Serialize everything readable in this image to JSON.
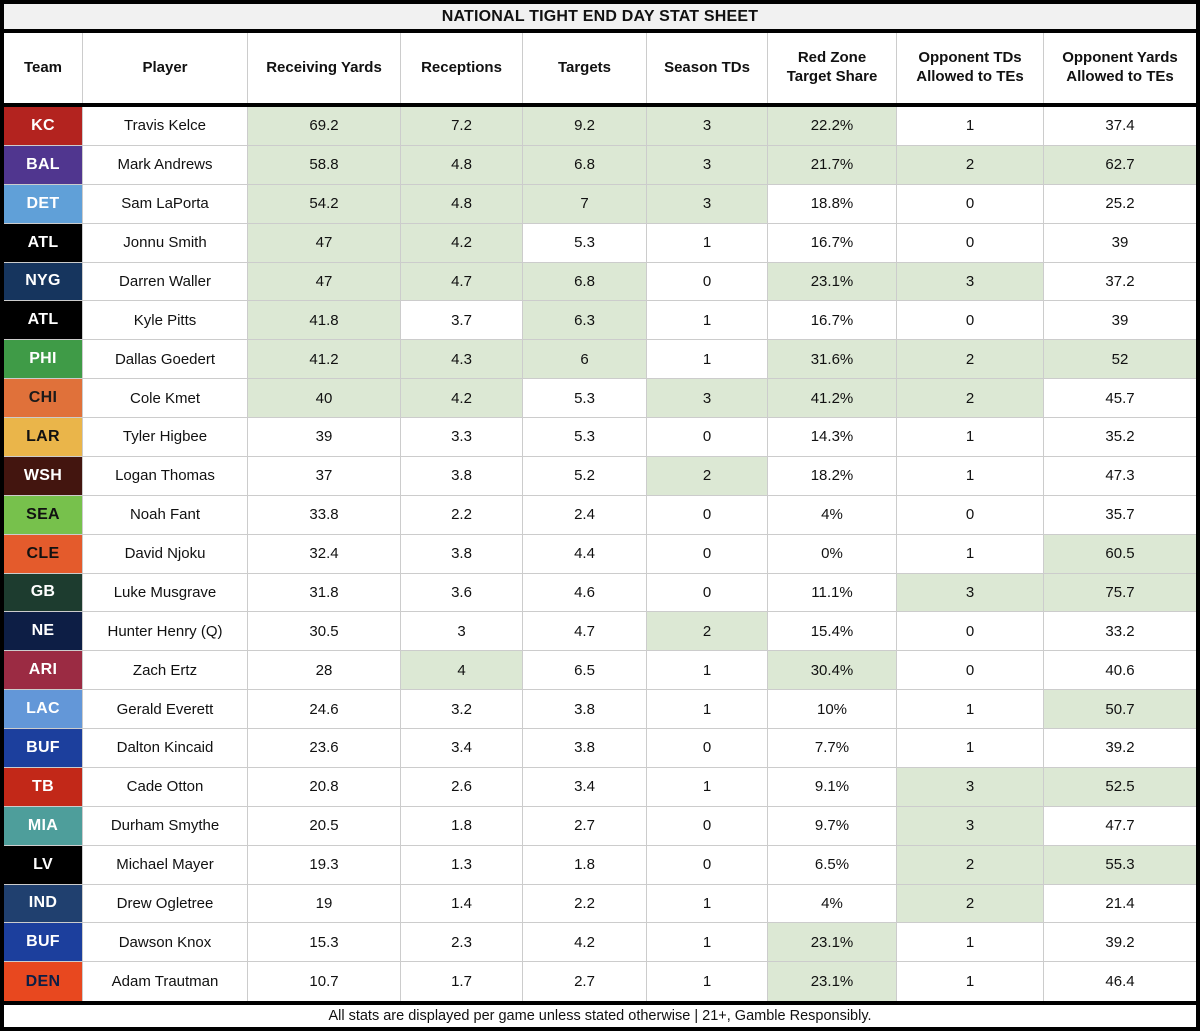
{
  "title": "NATIONAL TIGHT END DAY STAT SHEET",
  "footer": "All stats are displayed per game unless stated otherwise | 21+, Gamble Responsibly.",
  "highlight_color": "#dce8d4",
  "columns": [
    "Team",
    "Player",
    "Receiving Yards",
    "Receptions",
    "Targets",
    "Season TDs",
    "Red Zone Target Share",
    "Opponent TDs Allowed to TEs",
    "Opponent Yards Allowed to TEs"
  ],
  "rows": [
    {
      "team": "KC",
      "team_bg": "#b3231f",
      "team_fg": "#ffffff",
      "player": "Travis Kelce",
      "values": [
        "69.2",
        "7.2",
        "9.2",
        "3",
        "22.2%",
        "1",
        "37.4"
      ],
      "highlights": [
        1,
        1,
        1,
        1,
        1,
        0,
        0
      ]
    },
    {
      "team": "BAL",
      "team_bg": "#50368f",
      "team_fg": "#ffffff",
      "player": "Mark Andrews",
      "values": [
        "58.8",
        "4.8",
        "6.8",
        "3",
        "21.7%",
        "2",
        "62.7"
      ],
      "highlights": [
        1,
        1,
        1,
        1,
        1,
        1,
        1
      ]
    },
    {
      "team": "DET",
      "team_bg": "#60a0d8",
      "team_fg": "#ffffff",
      "player": "Sam LaPorta",
      "values": [
        "54.2",
        "4.8",
        "7",
        "3",
        "18.8%",
        "0",
        "25.2"
      ],
      "highlights": [
        1,
        1,
        1,
        1,
        0,
        0,
        0
      ]
    },
    {
      "team": "ATL",
      "team_bg": "#000000",
      "team_fg": "#ffffff",
      "player": "Jonnu Smith",
      "values": [
        "47",
        "4.2",
        "5.3",
        "1",
        "16.7%",
        "0",
        "39"
      ],
      "highlights": [
        1,
        1,
        0,
        0,
        0,
        0,
        0
      ]
    },
    {
      "team": "NYG",
      "team_bg": "#16355e",
      "team_fg": "#ffffff",
      "player": "Darren Waller",
      "values": [
        "47",
        "4.7",
        "6.8",
        "0",
        "23.1%",
        "3",
        "37.2"
      ],
      "highlights": [
        1,
        1,
        1,
        0,
        1,
        1,
        0
      ]
    },
    {
      "team": "ATL",
      "team_bg": "#000000",
      "team_fg": "#ffffff",
      "player": "Kyle Pitts",
      "values": [
        "41.8",
        "3.7",
        "6.3",
        "1",
        "16.7%",
        "0",
        "39"
      ],
      "highlights": [
        1,
        0,
        1,
        0,
        0,
        0,
        0
      ]
    },
    {
      "team": "PHI",
      "team_bg": "#3f9b47",
      "team_fg": "#ffffff",
      "player": "Dallas Goedert",
      "values": [
        "41.2",
        "4.3",
        "6",
        "1",
        "31.6%",
        "2",
        "52"
      ],
      "highlights": [
        1,
        1,
        1,
        0,
        1,
        1,
        1
      ]
    },
    {
      "team": "CHI",
      "team_bg": "#e0713a",
      "team_fg": "#1a1a1a",
      "player": "Cole Kmet",
      "values": [
        "40",
        "4.2",
        "5.3",
        "3",
        "41.2%",
        "2",
        "45.7"
      ],
      "highlights": [
        1,
        1,
        0,
        1,
        1,
        1,
        0
      ]
    },
    {
      "team": "LAR",
      "team_bg": "#eab54a",
      "team_fg": "#111111",
      "player": "Tyler Higbee",
      "values": [
        "39",
        "3.3",
        "5.3",
        "0",
        "14.3%",
        "1",
        "35.2"
      ],
      "highlights": [
        0,
        0,
        0,
        0,
        0,
        0,
        0
      ]
    },
    {
      "team": "WSH",
      "team_bg": "#43150f",
      "team_fg": "#ffffff",
      "player": "Logan Thomas",
      "values": [
        "37",
        "3.8",
        "5.2",
        "2",
        "18.2%",
        "1",
        "47.3"
      ],
      "highlights": [
        0,
        0,
        0,
        1,
        0,
        0,
        0
      ]
    },
    {
      "team": "SEA",
      "team_bg": "#77c14c",
      "team_fg": "#111111",
      "player": "Noah Fant",
      "values": [
        "33.8",
        "2.2",
        "2.4",
        "0",
        "4%",
        "0",
        "35.7"
      ],
      "highlights": [
        0,
        0,
        0,
        0,
        0,
        0,
        0
      ]
    },
    {
      "team": "CLE",
      "team_bg": "#e45b2c",
      "team_fg": "#111111",
      "player": "David Njoku",
      "values": [
        "32.4",
        "3.8",
        "4.4",
        "0",
        "0%",
        "1",
        "60.5"
      ],
      "highlights": [
        0,
        0,
        0,
        0,
        0,
        0,
        1
      ]
    },
    {
      "team": "GB",
      "team_bg": "#1d3c2f",
      "team_fg": "#ffffff",
      "player": "Luke Musgrave",
      "values": [
        "31.8",
        "3.6",
        "4.6",
        "0",
        "11.1%",
        "3",
        "75.7"
      ],
      "highlights": [
        0,
        0,
        0,
        0,
        0,
        1,
        1
      ]
    },
    {
      "team": "NE",
      "team_bg": "#0d1e45",
      "team_fg": "#ffffff",
      "player": "Hunter Henry (Q)",
      "values": [
        "30.5",
        "3",
        "4.7",
        "2",
        "15.4%",
        "0",
        "33.2"
      ],
      "highlights": [
        0,
        0,
        0,
        1,
        0,
        0,
        0
      ]
    },
    {
      "team": "ARI",
      "team_bg": "#9b2b43",
      "team_fg": "#ffffff",
      "player": "Zach Ertz",
      "values": [
        "28",
        "4",
        "6.5",
        "1",
        "30.4%",
        "0",
        "40.6"
      ],
      "highlights": [
        0,
        1,
        0,
        0,
        1,
        0,
        0
      ]
    },
    {
      "team": "LAC",
      "team_bg": "#6397d8",
      "team_fg": "#ffffff",
      "player": "Gerald Everett",
      "values": [
        "24.6",
        "3.2",
        "3.8",
        "1",
        "10%",
        "1",
        "50.7"
      ],
      "highlights": [
        0,
        0,
        0,
        0,
        0,
        0,
        1
      ]
    },
    {
      "team": "BUF",
      "team_bg": "#1c3f9d",
      "team_fg": "#ffffff",
      "player": "Dalton Kincaid",
      "values": [
        "23.6",
        "3.4",
        "3.8",
        "0",
        "7.7%",
        "1",
        "39.2"
      ],
      "highlights": [
        0,
        0,
        0,
        0,
        0,
        0,
        0
      ]
    },
    {
      "team": "TB",
      "team_bg": "#c22818",
      "team_fg": "#ffffff",
      "player": "Cade Otton",
      "values": [
        "20.8",
        "2.6",
        "3.4",
        "1",
        "9.1%",
        "3",
        "52.5"
      ],
      "highlights": [
        0,
        0,
        0,
        0,
        0,
        1,
        1
      ]
    },
    {
      "team": "MIA",
      "team_bg": "#4e9e9b",
      "team_fg": "#ffffff",
      "player": "Durham Smythe",
      "values": [
        "20.5",
        "1.8",
        "2.7",
        "0",
        "9.7%",
        "3",
        "47.7"
      ],
      "highlights": [
        0,
        0,
        0,
        0,
        0,
        1,
        0
      ]
    },
    {
      "team": "LV",
      "team_bg": "#000000",
      "team_fg": "#ffffff",
      "player": "Michael Mayer",
      "values": [
        "19.3",
        "1.3",
        "1.8",
        "0",
        "6.5%",
        "2",
        "55.3"
      ],
      "highlights": [
        0,
        0,
        0,
        0,
        0,
        1,
        1
      ]
    },
    {
      "team": "IND",
      "team_bg": "#20406f",
      "team_fg": "#ffffff",
      "player": "Drew Ogletree",
      "values": [
        "19",
        "1.4",
        "2.2",
        "1",
        "4%",
        "2",
        "21.4"
      ],
      "highlights": [
        0,
        0,
        0,
        0,
        0,
        1,
        0
      ]
    },
    {
      "team": "BUF",
      "team_bg": "#1c3f9d",
      "team_fg": "#ffffff",
      "player": "Dawson Knox",
      "values": [
        "15.3",
        "2.3",
        "4.2",
        "1",
        "23.1%",
        "1",
        "39.2"
      ],
      "highlights": [
        0,
        0,
        0,
        0,
        1,
        0,
        0
      ]
    },
    {
      "team": "DEN",
      "team_bg": "#e8481f",
      "team_fg": "#0d1e45",
      "player": "Adam Trautman",
      "values": [
        "10.7",
        "1.7",
        "2.7",
        "1",
        "23.1%",
        "1",
        "46.4"
      ],
      "highlights": [
        0,
        0,
        0,
        0,
        1,
        0,
        0
      ]
    }
  ],
  "stat_column_names": [
    "receiving-yards",
    "receptions",
    "targets",
    "season-tds",
    "red-zone-target-share",
    "opponent-tds-allowed",
    "opponent-yards-allowed"
  ]
}
